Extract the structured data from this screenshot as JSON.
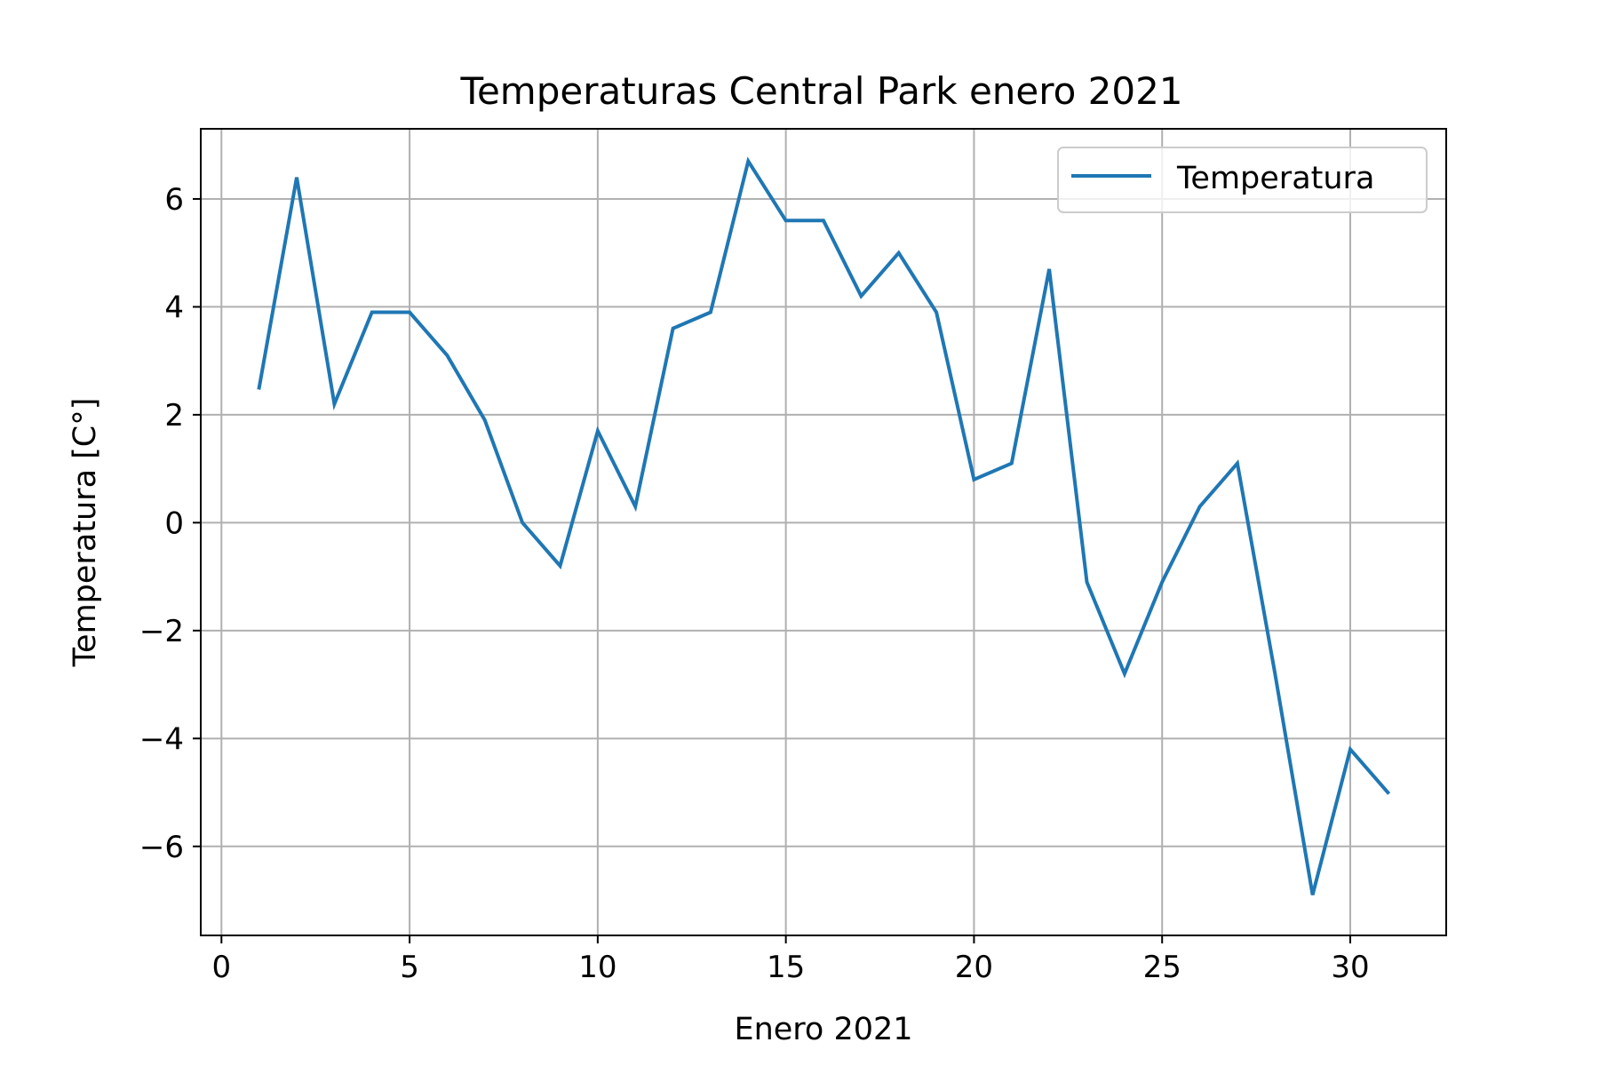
{
  "chart_data": {
    "type": "line",
    "title": "Temperaturas Central Park enero 2021",
    "xlabel": "Enero 2021",
    "ylabel": "Temperatura [C°]",
    "xlim": [
      -0.55,
      32.55
    ],
    "ylim": [
      -7.65,
      7.3
    ],
    "xticks": [
      0,
      5,
      10,
      15,
      20,
      25,
      30
    ],
    "xtick_labels": [
      "0",
      "5",
      "10",
      "15",
      "20",
      "25",
      "30"
    ],
    "yticks": [
      -6,
      -4,
      -2,
      0,
      2,
      4,
      6
    ],
    "ytick_labels": [
      "−6",
      "−4",
      "−2",
      "0",
      "2",
      "4",
      "6"
    ],
    "grid": true,
    "legend_position": "top-right",
    "series": [
      {
        "name": "Temperatura",
        "color": "#1f77b4",
        "x": [
          1,
          2,
          3,
          4,
          5,
          6,
          7,
          8,
          9,
          10,
          11,
          12,
          13,
          14,
          15,
          16,
          17,
          18,
          19,
          20,
          21,
          22,
          23,
          24,
          25,
          26,
          27,
          28,
          29,
          30,
          31
        ],
        "y": [
          2.5,
          6.4,
          2.2,
          3.9,
          3.9,
          3.1,
          1.9,
          0.0,
          -0.8,
          1.7,
          0.3,
          3.6,
          3.9,
          6.7,
          5.6,
          5.6,
          4.2,
          5.0,
          3.9,
          0.8,
          1.1,
          4.7,
          -1.1,
          -2.8,
          -1.1,
          0.3,
          1.1,
          -2.8,
          -6.9,
          -4.2,
          -5.0
        ]
      }
    ]
  },
  "colors": {
    "series": "#1f77b4",
    "grid": "#b0b0b0",
    "axes": "#000000",
    "legend_border": "#cccccc"
  }
}
